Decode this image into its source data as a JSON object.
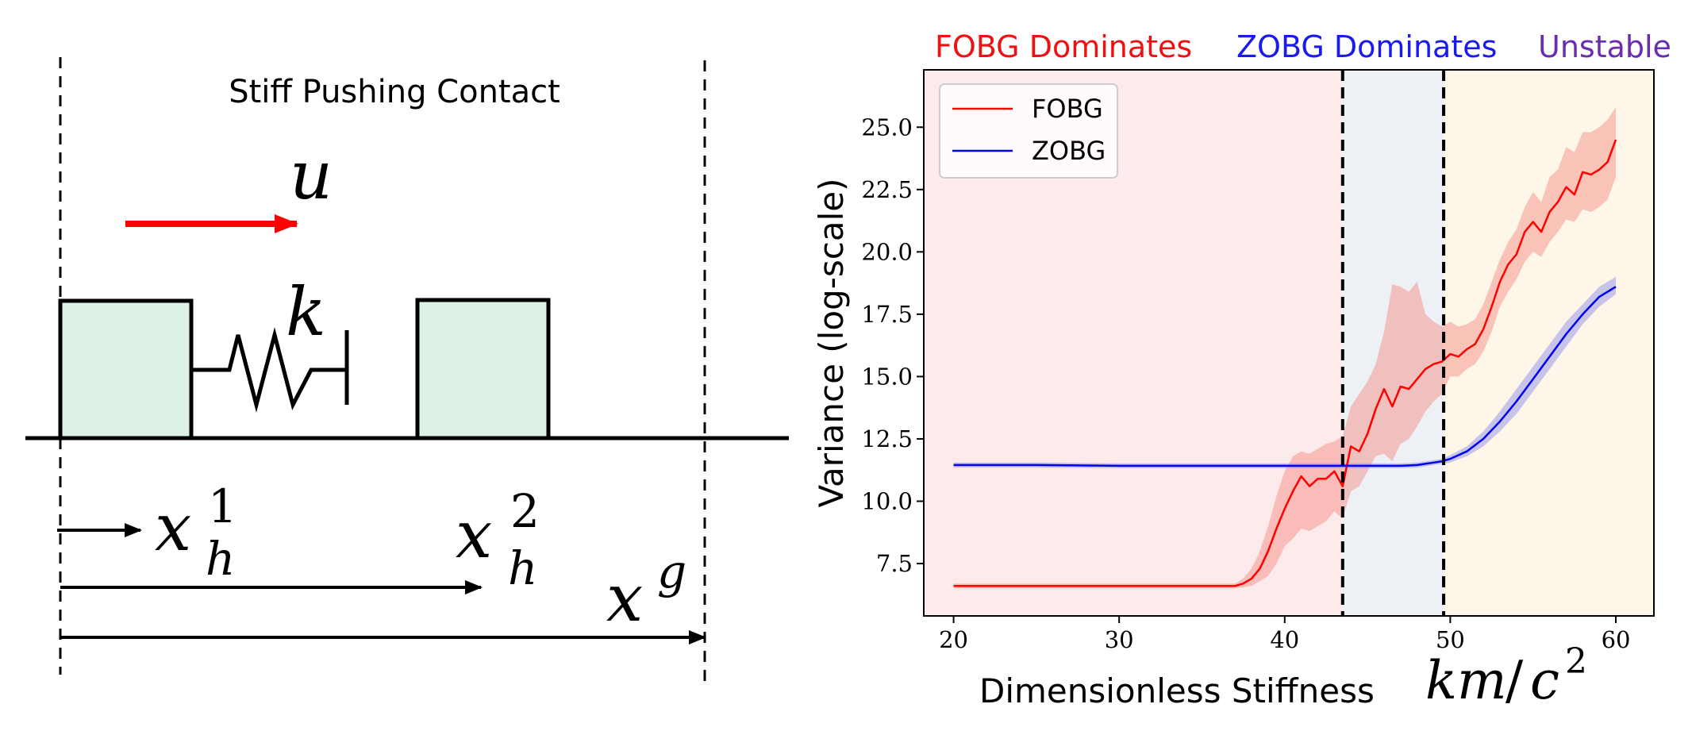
{
  "diagram": {
    "title": "Stiff Pushing Contact",
    "input_label": "u",
    "spring_label": "k",
    "x1_base": "x",
    "x1_sub": "h",
    "x1_sup": "1",
    "x2_base": "x",
    "x2_sub": "h",
    "x2_sup": "2",
    "goal_base": "x",
    "goal_sup": "g",
    "colors": {
      "block_fill": "#dcf2e4",
      "arrow": "#ff0000",
      "line": "#000000"
    }
  },
  "regions": {
    "fobg": "FOBG Dominates",
    "zobg": "ZOBG Dominates",
    "unstable": "Unstable"
  },
  "chart_data": {
    "type": "line",
    "xlabel": "Dimensionless Stiffness",
    "xlabel_math_base": "km",
    "xlabel_math_div": "/",
    "xlabel_math_c": "c",
    "xlabel_math_sup": "2",
    "ylabel": "Variance (log-scale)",
    "xlim": [
      18.2,
      62.3
    ],
    "ylim": [
      5.4,
      27.3
    ],
    "xticks": [
      20,
      30,
      40,
      50,
      60
    ],
    "yticks": [
      7.5,
      10.0,
      12.5,
      15.0,
      17.5,
      20.0,
      22.5,
      25.0
    ],
    "xtick_labels": [
      "20",
      "30",
      "40",
      "50",
      "60"
    ],
    "ytick_labels": [
      "7.5",
      "10.0",
      "12.5",
      "15.0",
      "17.5",
      "20.0",
      "22.5",
      "25.0"
    ],
    "region_bounds": [
      43.5,
      49.6
    ],
    "region_colors": [
      "#fdeaea",
      "#edf0f5",
      "#fdf6e9"
    ],
    "legend_position": "upper-left",
    "grid": false,
    "series": [
      {
        "name": "FOBG",
        "color": "#ff0000",
        "band_color": "#f5847c",
        "x": [
          20,
          22,
          24,
          26,
          28,
          30,
          32,
          34,
          36,
          37,
          37.5,
          38,
          38.5,
          39,
          39.5,
          40,
          40.5,
          41,
          41.5,
          42,
          42.5,
          43,
          43.5,
          44,
          44.5,
          45,
          45.5,
          46,
          46.5,
          47,
          47.5,
          48,
          48.5,
          49,
          49.5,
          50,
          50.5,
          51,
          51.5,
          52,
          52.5,
          53,
          53.5,
          54,
          54.5,
          55,
          55.5,
          56,
          56.5,
          57,
          57.5,
          58,
          58.5,
          59,
          59.5,
          60
        ],
        "y": [
          6.6,
          6.6,
          6.6,
          6.6,
          6.6,
          6.6,
          6.6,
          6.6,
          6.6,
          6.6,
          6.7,
          6.9,
          7.3,
          8.0,
          8.9,
          9.7,
          10.4,
          11.0,
          10.6,
          10.9,
          10.9,
          11.2,
          10.6,
          12.2,
          12.0,
          12.7,
          13.7,
          14.5,
          13.8,
          14.6,
          14.5,
          14.9,
          15.3,
          15.5,
          15.6,
          15.9,
          15.8,
          16.1,
          16.3,
          16.9,
          17.8,
          18.8,
          19.5,
          19.9,
          20.8,
          21.2,
          20.8,
          21.6,
          22.0,
          22.6,
          22.3,
          23.2,
          23.1,
          23.3,
          23.6,
          24.5
        ],
        "lower": [
          6.5,
          6.5,
          6.5,
          6.5,
          6.5,
          6.5,
          6.5,
          6.5,
          6.5,
          6.5,
          6.55,
          6.6,
          6.8,
          7.0,
          7.5,
          8.2,
          8.5,
          8.9,
          8.8,
          9.0,
          9.2,
          9.6,
          9.3,
          10.4,
          10.6,
          11.2,
          11.8,
          11.9,
          11.6,
          12.3,
          12.5,
          13.0,
          13.6,
          14.0,
          14.3,
          15.0,
          15.0,
          15.3,
          15.5,
          16.0,
          16.8,
          17.8,
          18.4,
          18.9,
          19.6,
          20.0,
          19.8,
          20.4,
          20.8,
          21.3,
          21.2,
          21.7,
          21.6,
          21.8,
          22.1,
          23.0
        ],
        "upper": [
          6.7,
          6.7,
          6.7,
          6.7,
          6.7,
          6.7,
          6.7,
          6.7,
          6.7,
          6.7,
          6.9,
          7.3,
          8.0,
          9.0,
          10.2,
          11.2,
          11.8,
          12.0,
          11.9,
          12.1,
          12.3,
          12.4,
          12.6,
          13.8,
          14.3,
          14.8,
          15.5,
          16.8,
          18.7,
          18.6,
          18.4,
          18.8,
          17.5,
          17.2,
          17.0,
          17.2,
          17.0,
          17.1,
          17.3,
          17.9,
          18.8,
          19.7,
          20.4,
          20.9,
          21.8,
          22.4,
          22.0,
          23.0,
          23.3,
          24.2,
          24.0,
          24.8,
          24.8,
          25.0,
          25.3,
          25.8
        ]
      },
      {
        "name": "ZOBG",
        "color": "#0000ee",
        "band_color": "#8888e8",
        "x": [
          20,
          25,
          30,
          35,
          40,
          45,
          47,
          48,
          49,
          49.5,
          50,
          51,
          52,
          53,
          54,
          55,
          56,
          57,
          58,
          59,
          60
        ],
        "y": [
          11.45,
          11.45,
          11.42,
          11.42,
          11.42,
          11.42,
          11.42,
          11.45,
          11.55,
          11.6,
          11.7,
          12.0,
          12.5,
          13.2,
          14.0,
          14.9,
          15.8,
          16.7,
          17.5,
          18.2,
          18.6
        ],
        "lower": [
          11.35,
          11.35,
          11.32,
          11.32,
          11.32,
          11.32,
          11.32,
          11.35,
          11.45,
          11.5,
          11.55,
          11.8,
          12.2,
          12.8,
          13.5,
          14.4,
          15.3,
          16.2,
          17.1,
          17.8,
          18.3
        ],
        "upper": [
          11.55,
          11.55,
          11.52,
          11.52,
          11.52,
          11.52,
          11.52,
          11.55,
          11.65,
          11.7,
          11.85,
          12.2,
          12.8,
          13.6,
          14.5,
          15.4,
          16.3,
          17.2,
          17.9,
          18.6,
          19.0
        ]
      }
    ]
  }
}
